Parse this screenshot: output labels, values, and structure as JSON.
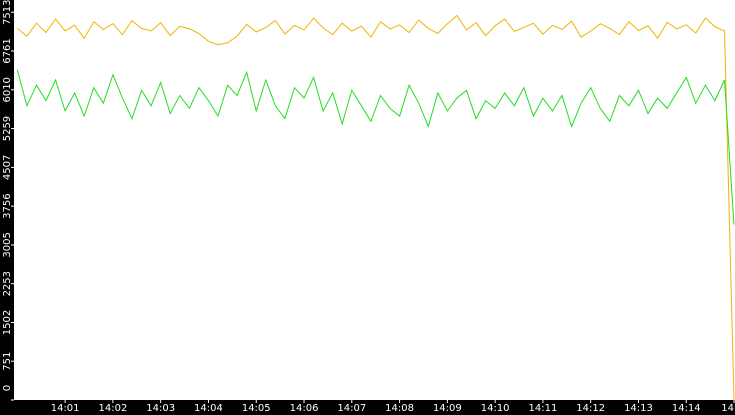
{
  "chart_data": {
    "type": "line",
    "x": [
      0,
      0.2,
      0.4,
      0.6,
      0.8,
      1,
      1.2,
      1.4,
      1.6,
      1.8,
      2,
      2.2,
      2.4,
      2.6,
      2.8,
      3,
      3.2,
      3.4,
      3.6,
      3.8,
      4,
      4.2,
      4.4,
      4.6,
      4.8,
      5,
      5.2,
      5.4,
      5.6,
      5.8,
      6,
      6.2,
      6.4,
      6.6,
      6.8,
      7,
      7.2,
      7.4,
      7.6,
      7.8,
      8,
      8.2,
      8.4,
      8.6,
      8.8,
      9,
      9.2,
      9.4,
      9.6,
      9.8,
      10,
      10.2,
      10.4,
      10.6,
      10.8,
      11,
      11.2,
      11.4,
      11.6,
      11.8,
      12,
      12.2,
      12.4,
      12.6,
      12.8,
      13,
      13.2,
      13.4,
      13.6,
      13.8,
      14,
      14.2,
      14.4,
      14.6,
      14.8,
      15
    ],
    "series": [
      {
        "color": "#f0b400",
        "values": [
          7200,
          7050,
          7300,
          7120,
          7380,
          7150,
          7260,
          7010,
          7330,
          7180,
          7290,
          7080,
          7350,
          7200,
          7150,
          7310,
          7060,
          7240,
          7190,
          7100,
          6950,
          6880,
          6920,
          7050,
          7280,
          7130,
          7220,
          7350,
          7090,
          7260,
          7170,
          7400,
          7210,
          7080,
          7300,
          7150,
          7240,
          7030,
          7330,
          7190,
          7270,
          7120,
          7360,
          7200,
          7100,
          7290,
          7450,
          7170,
          7310,
          7060,
          7250,
          7380,
          7140,
          7220,
          7300,
          7090,
          7260,
          7180,
          7340,
          7030,
          7150,
          7290,
          7200,
          7080,
          7330,
          7160,
          7250,
          7010,
          7320,
          7190,
          7270,
          7110,
          7400,
          7230,
          7150,
          0
        ]
      },
      {
        "color": "#22dd22",
        "values": [
          6400,
          5700,
          6100,
          5800,
          6200,
          5600,
          5950,
          5500,
          6050,
          5750,
          6300,
          5850,
          5450,
          6000,
          5700,
          6150,
          5550,
          5900,
          5650,
          6050,
          5800,
          5500,
          6100,
          5900,
          6350,
          5600,
          6200,
          5700,
          5450,
          6050,
          5850,
          6250,
          5600,
          5950,
          5350,
          6000,
          5700,
          5400,
          5900,
          5650,
          5500,
          6100,
          5750,
          5300,
          5950,
          5600,
          5850,
          6000,
          5450,
          5800,
          5650,
          5950,
          5700,
          6050,
          5500,
          5850,
          5600,
          5900,
          5300,
          5750,
          6050,
          5650,
          5400,
          5900,
          5700,
          6000,
          5550,
          5850,
          5650,
          5950,
          6250,
          5750,
          6100,
          5800,
          6200,
          3400
        ]
      }
    ],
    "ylim": [
      0,
      7750
    ],
    "yticks": [
      0,
      751,
      1502,
      2253,
      3005,
      3756,
      4507,
      5259,
      6010,
      6761,
      7513
    ],
    "xlim": [
      -0.07,
      15.02
    ],
    "xticks": [
      {
        "value": 1,
        "label": "14:01"
      },
      {
        "value": 2,
        "label": "14:02"
      },
      {
        "value": 3,
        "label": "14:03"
      },
      {
        "value": 4,
        "label": "14:04"
      },
      {
        "value": 5,
        "label": "14:05"
      },
      {
        "value": 6,
        "label": "14:06"
      },
      {
        "value": 7,
        "label": "14:07"
      },
      {
        "value": 8,
        "label": "14:08"
      },
      {
        "value": 9,
        "label": "14:09"
      },
      {
        "value": 10,
        "label": "14:10"
      },
      {
        "value": 11,
        "label": "14:11"
      },
      {
        "value": 12,
        "label": "14:12"
      },
      {
        "value": 13,
        "label": "14:13"
      },
      {
        "value": 14,
        "label": "14:14"
      },
      {
        "value": 15,
        "label": "14"
      }
    ]
  }
}
